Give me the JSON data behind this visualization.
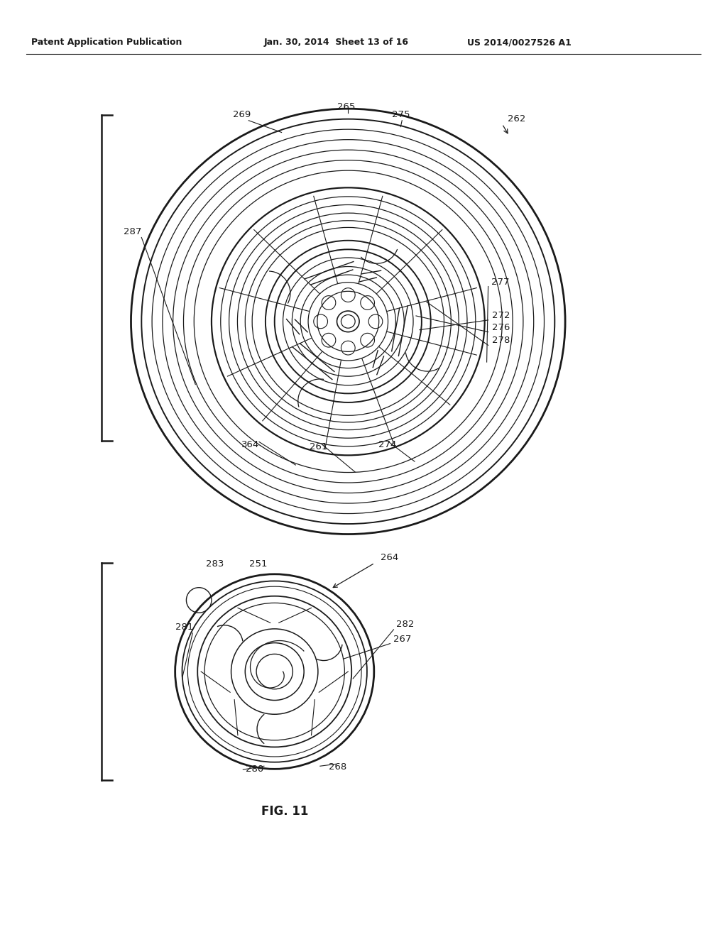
{
  "title": "FIG. 11",
  "header_left": "Patent Application Publication",
  "header_mid": "Jan. 30, 2014  Sheet 13 of 16",
  "header_right": "US 2014/0027526 A1",
  "bg_color": "#ffffff",
  "line_color": "#1a1a1a",
  "text_color": "#1a1a1a"
}
